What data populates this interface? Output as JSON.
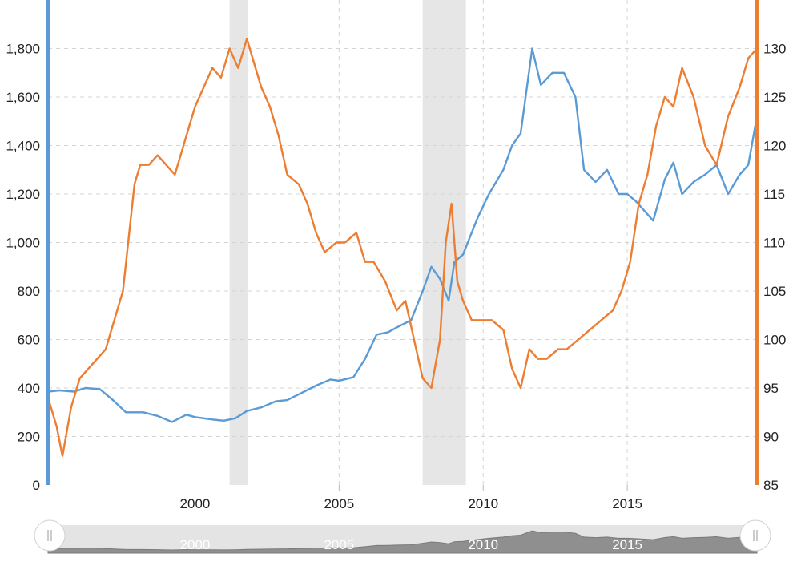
{
  "chart_data": {
    "type": "line",
    "title": "",
    "xlabel": "",
    "x_range": [
      1994.9,
      2019.5
    ],
    "x_ticks": [
      "2000",
      "2005",
      "2010",
      "2015"
    ],
    "y_left": {
      "label": "",
      "range": [
        0,
        2000
      ],
      "ticks": [
        "0",
        "200",
        "400",
        "600",
        "800",
        "1,000",
        "1,200",
        "1,400",
        "1,600",
        "1,800"
      ],
      "color": "#5b9bd5"
    },
    "y_right": {
      "label": "",
      "range": [
        85,
        135
      ],
      "ticks": [
        "85",
        "90",
        "95",
        "100",
        "105",
        "110",
        "115",
        "120",
        "125",
        "130"
      ],
      "color": "#ed7d31"
    },
    "recession_bands": [
      {
        "start": 2001.2,
        "end": 2001.85
      },
      {
        "start": 2007.9,
        "end": 2009.4
      }
    ],
    "grid": true,
    "series": [
      {
        "name": "",
        "axis": "left",
        "color": "#5b9bd5",
        "x": [
          1994.9,
          1995.3,
          1995.8,
          1996.2,
          1996.7,
          1997.2,
          1997.6,
          1998.2,
          1998.7,
          1999.2,
          1999.7,
          2000.0,
          2000.6,
          2001.0,
          2001.4,
          2001.8,
          2002.3,
          2002.8,
          2003.2,
          2003.7,
          2004.2,
          2004.7,
          2005.0,
          2005.5,
          2005.9,
          2006.3,
          2006.7,
          2007.0,
          2007.5,
          2007.9,
          2008.2,
          2008.5,
          2008.8,
          2009.0,
          2009.3,
          2009.8,
          2010.2,
          2010.7,
          2011.0,
          2011.3,
          2011.7,
          2012.0,
          2012.4,
          2012.8,
          2013.2,
          2013.5,
          2013.9,
          2014.3,
          2014.7,
          2015.0,
          2015.3,
          2015.6,
          2015.9,
          2016.3,
          2016.6,
          2016.9,
          2017.3,
          2017.7,
          2018.1,
          2018.5,
          2018.9,
          2019.2,
          2019.5
        ],
        "values": [
          385,
          390,
          385,
          400,
          395,
          345,
          300,
          300,
          285,
          260,
          290,
          280,
          270,
          265,
          275,
          305,
          320,
          345,
          350,
          380,
          410,
          435,
          430,
          445,
          520,
          620,
          630,
          650,
          680,
          800,
          900,
          850,
          760,
          920,
          950,
          1100,
          1200,
          1300,
          1400,
          1450,
          1800,
          1650,
          1700,
          1700,
          1600,
          1300,
          1250,
          1300,
          1200,
          1200,
          1170,
          1130,
          1090,
          1260,
          1330,
          1200,
          1250,
          1280,
          1320,
          1200,
          1280,
          1320,
          1520
        ]
      },
      {
        "name": "",
        "axis": "right",
        "color": "#ed7d31",
        "x": [
          1994.9,
          1995.2,
          1995.4,
          1995.7,
          1996.0,
          1996.3,
          1996.6,
          1996.9,
          1997.2,
          1997.5,
          1997.9,
          1998.1,
          1998.4,
          1998.7,
          1999.0,
          1999.3,
          1999.7,
          2000.0,
          2000.3,
          2000.6,
          2000.9,
          2001.2,
          2001.5,
          2001.8,
          2002.0,
          2002.3,
          2002.6,
          2002.9,
          2003.2,
          2003.6,
          2003.9,
          2004.2,
          2004.5,
          2004.9,
          2005.2,
          2005.6,
          2005.9,
          2006.2,
          2006.6,
          2007.0,
          2007.3,
          2007.6,
          2007.9,
          2008.2,
          2008.5,
          2008.7,
          2008.9,
          2009.1,
          2009.3,
          2009.6,
          2009.9,
          2010.3,
          2010.7,
          2011.0,
          2011.3,
          2011.6,
          2011.9,
          2012.2,
          2012.6,
          2012.9,
          2013.3,
          2013.7,
          2014.1,
          2014.5,
          2014.8,
          2015.1,
          2015.4,
          2015.7,
          2016.0,
          2016.3,
          2016.6,
          2016.9,
          2017.3,
          2017.7,
          2018.1,
          2018.5,
          2018.9,
          2019.2,
          2019.5
        ],
        "values": [
          94,
          91,
          88,
          93,
          96,
          97,
          98,
          99,
          102,
          105,
          116,
          118,
          118,
          119,
          118,
          117,
          121,
          124,
          126,
          128,
          127,
          130,
          128,
          131,
          129,
          126,
          124,
          121,
          117,
          116,
          114,
          111,
          109,
          110,
          110,
          111,
          108,
          108,
          106,
          103,
          104,
          100,
          96,
          95,
          100,
          110,
          114,
          106,
          104,
          102,
          102,
          102,
          101,
          97,
          95,
          99,
          98,
          98,
          99,
          99,
          100,
          101,
          102,
          103,
          105,
          108,
          114,
          117,
          122,
          125,
          124,
          128,
          125,
          120,
          118,
          123,
          126,
          129,
          130
        ]
      }
    ],
    "navigator_ticks": [
      "2000",
      "2005",
      "2010",
      "2015"
    ]
  }
}
